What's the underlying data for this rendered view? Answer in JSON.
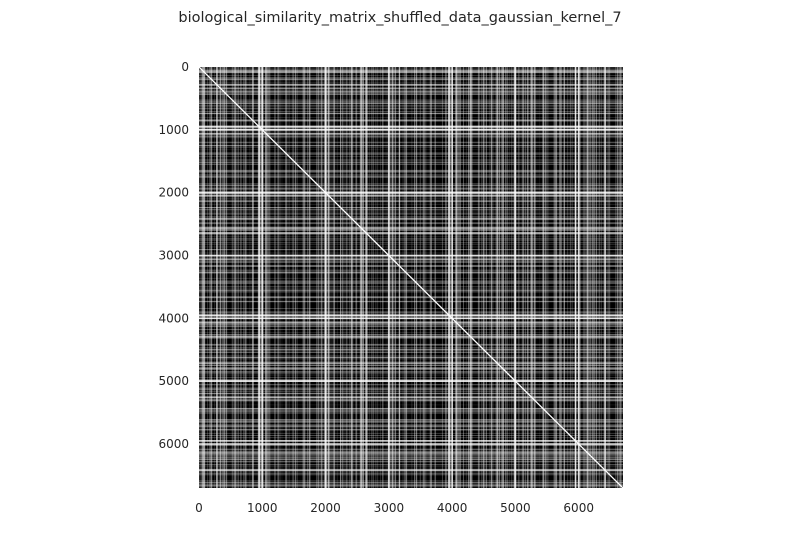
{
  "chart_data": {
    "type": "heatmap",
    "title": "biological_similarity_matrix_shuffled_data_gaussian_kernel_7",
    "xlabel": "",
    "ylabel": "",
    "xlim": [
      0,
      6700
    ],
    "ylim": [
      6700,
      0
    ],
    "x_ticks": [
      0,
      1000,
      2000,
      3000,
      4000,
      5000,
      6000
    ],
    "y_ticks": [
      0,
      1000,
      2000,
      3000,
      4000,
      5000,
      6000
    ],
    "x_tick_labels": [
      "0",
      "1000",
      "2000",
      "3000",
      "4000",
      "5000",
      "6000"
    ],
    "y_tick_labels": [
      "0",
      "1000",
      "2000",
      "3000",
      "4000",
      "5000",
      "6000"
    ],
    "colormap": [
      "#000000",
      "#ffffff"
    ],
    "matrix_size": 6700,
    "diagonal": "white",
    "highlighted_indices": [
      950,
      1000,
      2000,
      3000,
      3950,
      4000,
      5000,
      5950,
      6000
    ],
    "grid": false
  }
}
